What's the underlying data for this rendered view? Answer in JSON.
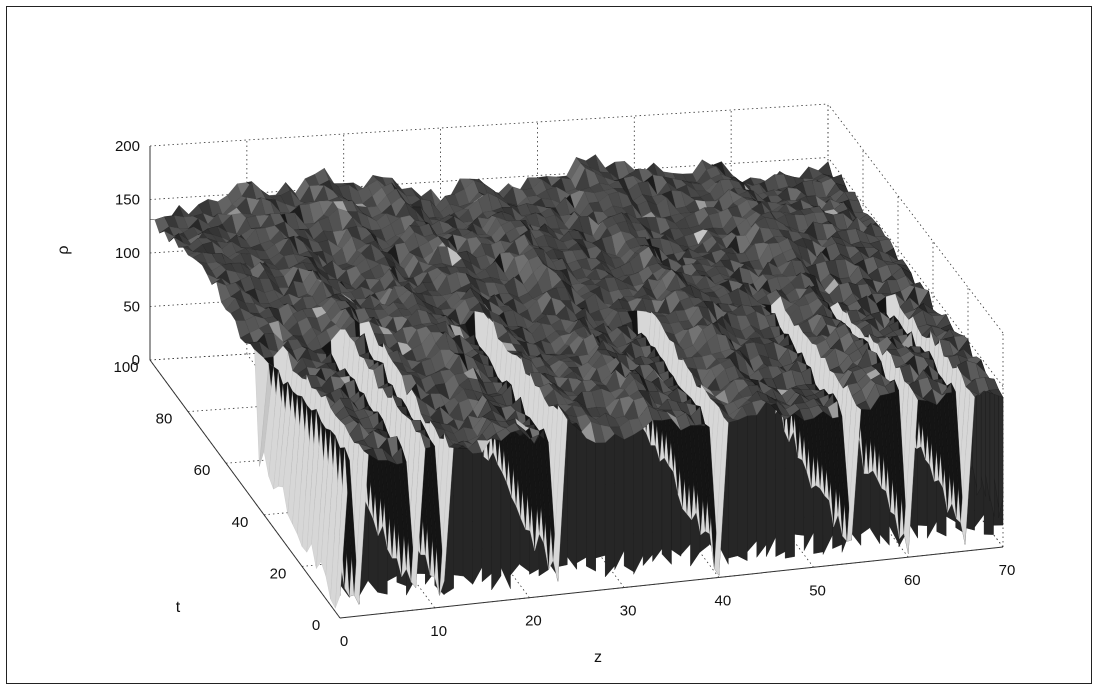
{
  "chart_data": {
    "type": "surface",
    "title": "",
    "xlabel": "z",
    "ylabel": "t",
    "zlabel": "ρ",
    "x_ticks": [
      "0",
      "10",
      "20",
      "30",
      "40",
      "50",
      "60",
      "70"
    ],
    "y_ticks": [
      "0",
      "20",
      "40",
      "60",
      "80",
      "100"
    ],
    "z_ticks": [
      "0",
      "50",
      "100",
      "150",
      "200"
    ],
    "xlim": [
      0,
      70
    ],
    "ylim": [
      0,
      100
    ],
    "zlim": [
      0,
      200
    ],
    "grid": true,
    "colormap": "gray",
    "surface_color": "#4a4a4a",
    "plateau_level": 150,
    "ridges_along_t_at_z": [
      10,
      18,
      24,
      33,
      45,
      58
    ],
    "deep_drops_to_zero_at_z": [
      0,
      2,
      8,
      11,
      23,
      40,
      54,
      60,
      66
    ]
  }
}
